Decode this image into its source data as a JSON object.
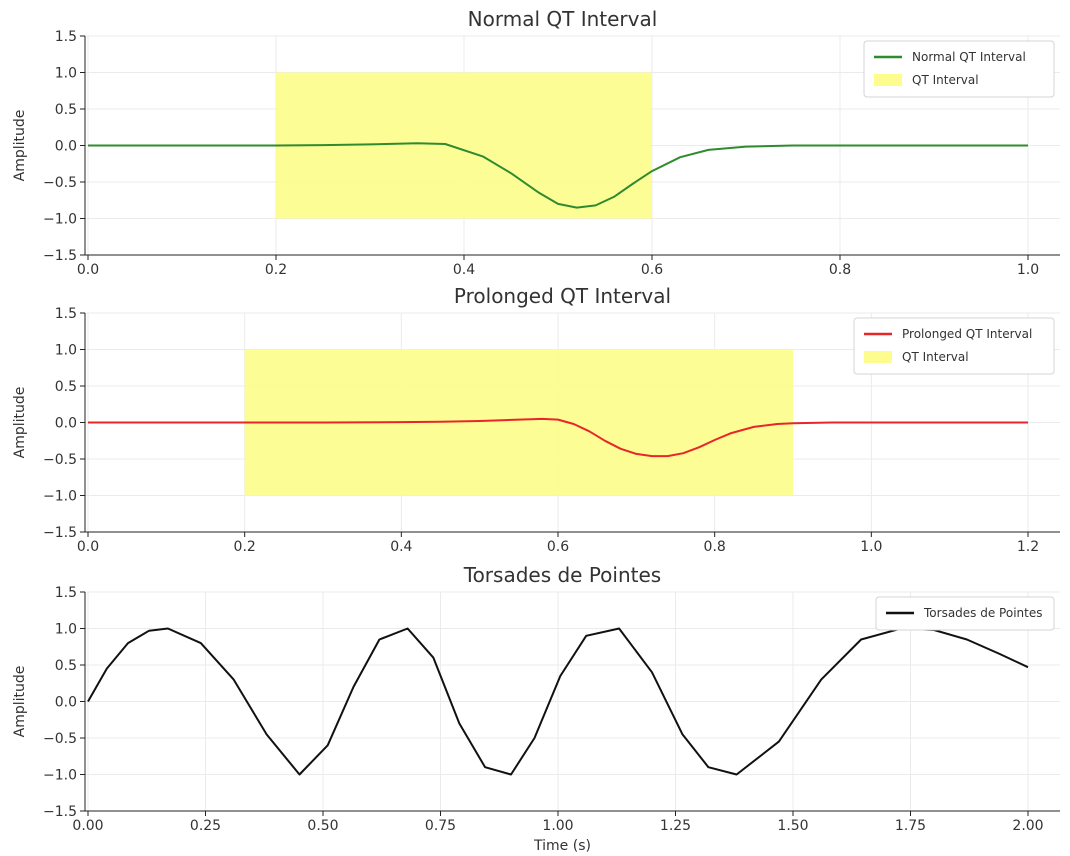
{
  "chart_data": [
    {
      "type": "line",
      "title": "Normal QT Interval",
      "xlabel": "",
      "ylabel": "Amplitude",
      "xlim": [
        0.0,
        1.0
      ],
      "ylim": [
        -1.5,
        1.5
      ],
      "xticks": [
        "0.0",
        "0.2",
        "0.4",
        "0.6",
        "0.8",
        "1.0"
      ],
      "yticks": [
        "1.5",
        "1.0",
        "0.5",
        "0.0",
        "−0.5",
        "−1.0",
        "−1.5"
      ],
      "grid": true,
      "legend_position": "top-right",
      "series": [
        {
          "name": "Normal QT Interval",
          "color": "#2e8b2e",
          "x": [
            0.0,
            0.2,
            0.25,
            0.3,
            0.35,
            0.38,
            0.42,
            0.45,
            0.48,
            0.5,
            0.52,
            0.54,
            0.56,
            0.58,
            0.6,
            0.63,
            0.66,
            0.7,
            0.75,
            0.8,
            1.0
          ],
          "y": [
            0.0,
            0.0,
            0.005,
            0.015,
            0.03,
            0.02,
            -0.15,
            -0.38,
            -0.65,
            -0.8,
            -0.85,
            -0.82,
            -0.7,
            -0.52,
            -0.35,
            -0.16,
            -0.06,
            -0.015,
            0.0,
            0.0,
            0.0
          ]
        }
      ],
      "shaded_region": {
        "name": "QT Interval",
        "color": "#fdfd8f",
        "x": [
          0.2,
          0.6
        ],
        "y": [
          -1.0,
          1.0
        ]
      }
    },
    {
      "type": "line",
      "title": "Prolonged QT Interval",
      "xlabel": "",
      "ylabel": "Amplitude",
      "xlim": [
        0.0,
        1.2
      ],
      "ylim": [
        -1.5,
        1.5
      ],
      "xticks": [
        "0.0",
        "0.2",
        "0.4",
        "0.6",
        "0.8",
        "1.0",
        "1.2"
      ],
      "yticks": [
        "1.5",
        "1.0",
        "0.5",
        "0.0",
        "−0.5",
        "−1.0",
        "−1.5"
      ],
      "grid": true,
      "legend_position": "top-right",
      "series": [
        {
          "name": "Prolonged QT Interval",
          "color": "#e8262a",
          "x": [
            0.0,
            0.2,
            0.3,
            0.4,
            0.45,
            0.5,
            0.55,
            0.58,
            0.6,
            0.62,
            0.64,
            0.66,
            0.68,
            0.7,
            0.72,
            0.74,
            0.76,
            0.78,
            0.8,
            0.82,
            0.85,
            0.88,
            0.9,
            0.95,
            1.0,
            1.2
          ],
          "y": [
            0.0,
            0.0,
            0.0,
            0.005,
            0.01,
            0.02,
            0.04,
            0.05,
            0.04,
            -0.02,
            -0.12,
            -0.25,
            -0.36,
            -0.43,
            -0.46,
            -0.46,
            -0.42,
            -0.34,
            -0.24,
            -0.15,
            -0.06,
            -0.02,
            -0.01,
            0.0,
            0.0,
            0.0
          ]
        }
      ],
      "shaded_region": {
        "name": "QT Interval",
        "color": "#fdfd8f",
        "x": [
          0.2,
          0.9
        ],
        "y": [
          -1.0,
          1.0
        ]
      }
    },
    {
      "type": "line",
      "title": "Torsades de Pointes",
      "xlabel": "Time (s)",
      "ylabel": "Amplitude",
      "xlim": [
        0.0,
        2.0
      ],
      "ylim": [
        -1.5,
        1.5
      ],
      "xticks": [
        "0.00",
        "0.25",
        "0.50",
        "0.75",
        "1.00",
        "1.25",
        "1.50",
        "1.75",
        "2.00"
      ],
      "yticks": [
        "1.5",
        "1.0",
        "0.5",
        "0.0",
        "−0.5",
        "−1.0",
        "−1.5"
      ],
      "grid": true,
      "legend_position": "top-right",
      "series": [
        {
          "name": "Torsades de Pointes",
          "color": "#111111",
          "x": [
            0.0,
            0.04,
            0.085,
            0.13,
            0.17,
            0.24,
            0.31,
            0.38,
            0.45,
            0.51,
            0.565,
            0.62,
            0.68,
            0.735,
            0.79,
            0.845,
            0.9,
            0.95,
            1.005,
            1.06,
            1.13,
            1.2,
            1.265,
            1.32,
            1.38,
            1.47,
            1.56,
            1.645,
            1.73,
            1.8,
            1.87,
            1.94,
            2.0
          ],
          "y": [
            0.0,
            0.45,
            0.8,
            0.97,
            1.0,
            0.8,
            0.3,
            -0.45,
            -1.0,
            -0.6,
            0.2,
            0.85,
            1.0,
            0.6,
            -0.3,
            -0.9,
            -1.0,
            -0.5,
            0.35,
            0.9,
            1.0,
            0.4,
            -0.45,
            -0.9,
            -1.0,
            -0.55,
            0.3,
            0.85,
            1.0,
            0.98,
            0.85,
            0.65,
            0.47
          ]
        }
      ]
    }
  ]
}
